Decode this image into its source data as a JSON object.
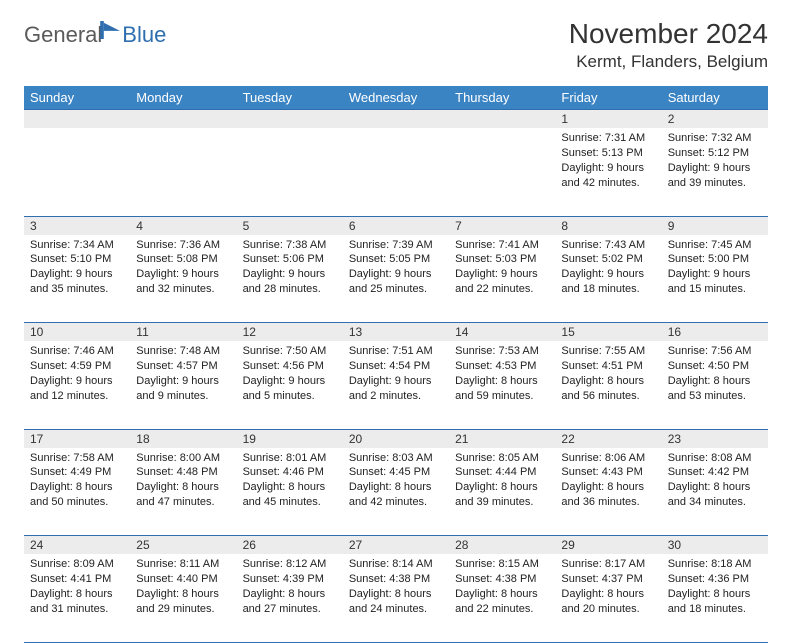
{
  "logo": {
    "text1": "General",
    "text2": "Blue"
  },
  "title": "November 2024",
  "location": "Kermt, Flanders, Belgium",
  "colors": {
    "header_bg": "#3b84c4",
    "border": "#2f6fb0",
    "shade": "#ececec",
    "text": "#222222"
  },
  "weekdays": [
    "Sunday",
    "Monday",
    "Tuesday",
    "Wednesday",
    "Thursday",
    "Friday",
    "Saturday"
  ],
  "first_weekday_index": 5,
  "days": [
    {
      "n": 1,
      "sr": "7:31 AM",
      "ss": "5:13 PM",
      "dl": "9 hours and 42 minutes."
    },
    {
      "n": 2,
      "sr": "7:32 AM",
      "ss": "5:12 PM",
      "dl": "9 hours and 39 minutes."
    },
    {
      "n": 3,
      "sr": "7:34 AM",
      "ss": "5:10 PM",
      "dl": "9 hours and 35 minutes."
    },
    {
      "n": 4,
      "sr": "7:36 AM",
      "ss": "5:08 PM",
      "dl": "9 hours and 32 minutes."
    },
    {
      "n": 5,
      "sr": "7:38 AM",
      "ss": "5:06 PM",
      "dl": "9 hours and 28 minutes."
    },
    {
      "n": 6,
      "sr": "7:39 AM",
      "ss": "5:05 PM",
      "dl": "9 hours and 25 minutes."
    },
    {
      "n": 7,
      "sr": "7:41 AM",
      "ss": "5:03 PM",
      "dl": "9 hours and 22 minutes."
    },
    {
      "n": 8,
      "sr": "7:43 AM",
      "ss": "5:02 PM",
      "dl": "9 hours and 18 minutes."
    },
    {
      "n": 9,
      "sr": "7:45 AM",
      "ss": "5:00 PM",
      "dl": "9 hours and 15 minutes."
    },
    {
      "n": 10,
      "sr": "7:46 AM",
      "ss": "4:59 PM",
      "dl": "9 hours and 12 minutes."
    },
    {
      "n": 11,
      "sr": "7:48 AM",
      "ss": "4:57 PM",
      "dl": "9 hours and 9 minutes."
    },
    {
      "n": 12,
      "sr": "7:50 AM",
      "ss": "4:56 PM",
      "dl": "9 hours and 5 minutes."
    },
    {
      "n": 13,
      "sr": "7:51 AM",
      "ss": "4:54 PM",
      "dl": "9 hours and 2 minutes."
    },
    {
      "n": 14,
      "sr": "7:53 AM",
      "ss": "4:53 PM",
      "dl": "8 hours and 59 minutes."
    },
    {
      "n": 15,
      "sr": "7:55 AM",
      "ss": "4:51 PM",
      "dl": "8 hours and 56 minutes."
    },
    {
      "n": 16,
      "sr": "7:56 AM",
      "ss": "4:50 PM",
      "dl": "8 hours and 53 minutes."
    },
    {
      "n": 17,
      "sr": "7:58 AM",
      "ss": "4:49 PM",
      "dl": "8 hours and 50 minutes."
    },
    {
      "n": 18,
      "sr": "8:00 AM",
      "ss": "4:48 PM",
      "dl": "8 hours and 47 minutes."
    },
    {
      "n": 19,
      "sr": "8:01 AM",
      "ss": "4:46 PM",
      "dl": "8 hours and 45 minutes."
    },
    {
      "n": 20,
      "sr": "8:03 AM",
      "ss": "4:45 PM",
      "dl": "8 hours and 42 minutes."
    },
    {
      "n": 21,
      "sr": "8:05 AM",
      "ss": "4:44 PM",
      "dl": "8 hours and 39 minutes."
    },
    {
      "n": 22,
      "sr": "8:06 AM",
      "ss": "4:43 PM",
      "dl": "8 hours and 36 minutes."
    },
    {
      "n": 23,
      "sr": "8:08 AM",
      "ss": "4:42 PM",
      "dl": "8 hours and 34 minutes."
    },
    {
      "n": 24,
      "sr": "8:09 AM",
      "ss": "4:41 PM",
      "dl": "8 hours and 31 minutes."
    },
    {
      "n": 25,
      "sr": "8:11 AM",
      "ss": "4:40 PM",
      "dl": "8 hours and 29 minutes."
    },
    {
      "n": 26,
      "sr": "8:12 AM",
      "ss": "4:39 PM",
      "dl": "8 hours and 27 minutes."
    },
    {
      "n": 27,
      "sr": "8:14 AM",
      "ss": "4:38 PM",
      "dl": "8 hours and 24 minutes."
    },
    {
      "n": 28,
      "sr": "8:15 AM",
      "ss": "4:38 PM",
      "dl": "8 hours and 22 minutes."
    },
    {
      "n": 29,
      "sr": "8:17 AM",
      "ss": "4:37 PM",
      "dl": "8 hours and 20 minutes."
    },
    {
      "n": 30,
      "sr": "8:18 AM",
      "ss": "4:36 PM",
      "dl": "8 hours and 18 minutes."
    }
  ],
  "labels": {
    "sunrise": "Sunrise:",
    "sunset": "Sunset:",
    "daylight": "Daylight:"
  }
}
